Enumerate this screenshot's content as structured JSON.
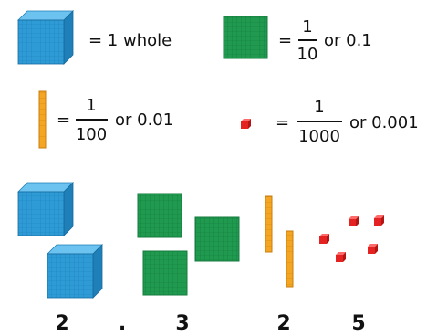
{
  "legend": [
    {
      "text": "= 1 whole"
    },
    {
      "equals": "=",
      "numerator": "1",
      "denominator": "10",
      "decimal": "or 0.1"
    },
    {
      "equals": "=",
      "numerator": "1",
      "denominator": "100",
      "decimal": "or 0.01"
    },
    {
      "equals": "=",
      "numerator": "1",
      "denominator": "1000",
      "decimal": "or 0.001"
    }
  ],
  "digits": [
    "2",
    ".",
    "3",
    "2",
    "5"
  ]
}
